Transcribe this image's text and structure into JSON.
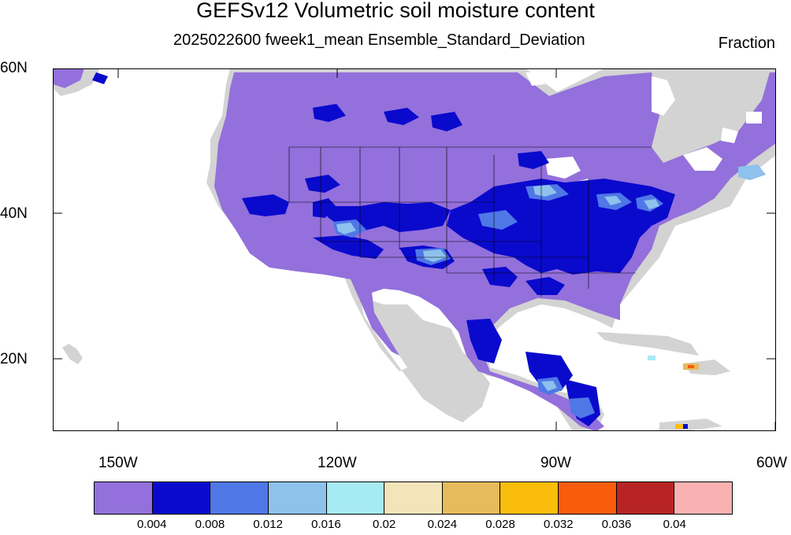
{
  "title": "GEFSv12 Volumetric soil moisture content",
  "subtitle": "2025022600 fweek1_mean Ensemble_Standard_Deviation",
  "units": "Fraction",
  "lat_labels": [
    "60N",
    "40N",
    "20N"
  ],
  "lon_labels": [
    "150W",
    "120W",
    "90W",
    "60W"
  ],
  "colorbar": {
    "colors": [
      "#9370DB",
      "#0A0ACD",
      "#4F77E6",
      "#8EC1EC",
      "#A6EAF4",
      "#F4E4BA",
      "#E7BA5C",
      "#FBBD0B",
      "#F95D0B",
      "#B82424",
      "#FAB1B1"
    ],
    "labels": [
      "0.004",
      "0.008",
      "0.012",
      "0.016",
      "0.02",
      "0.024",
      "0.028",
      "0.032",
      "0.036",
      "0.04"
    ]
  }
}
